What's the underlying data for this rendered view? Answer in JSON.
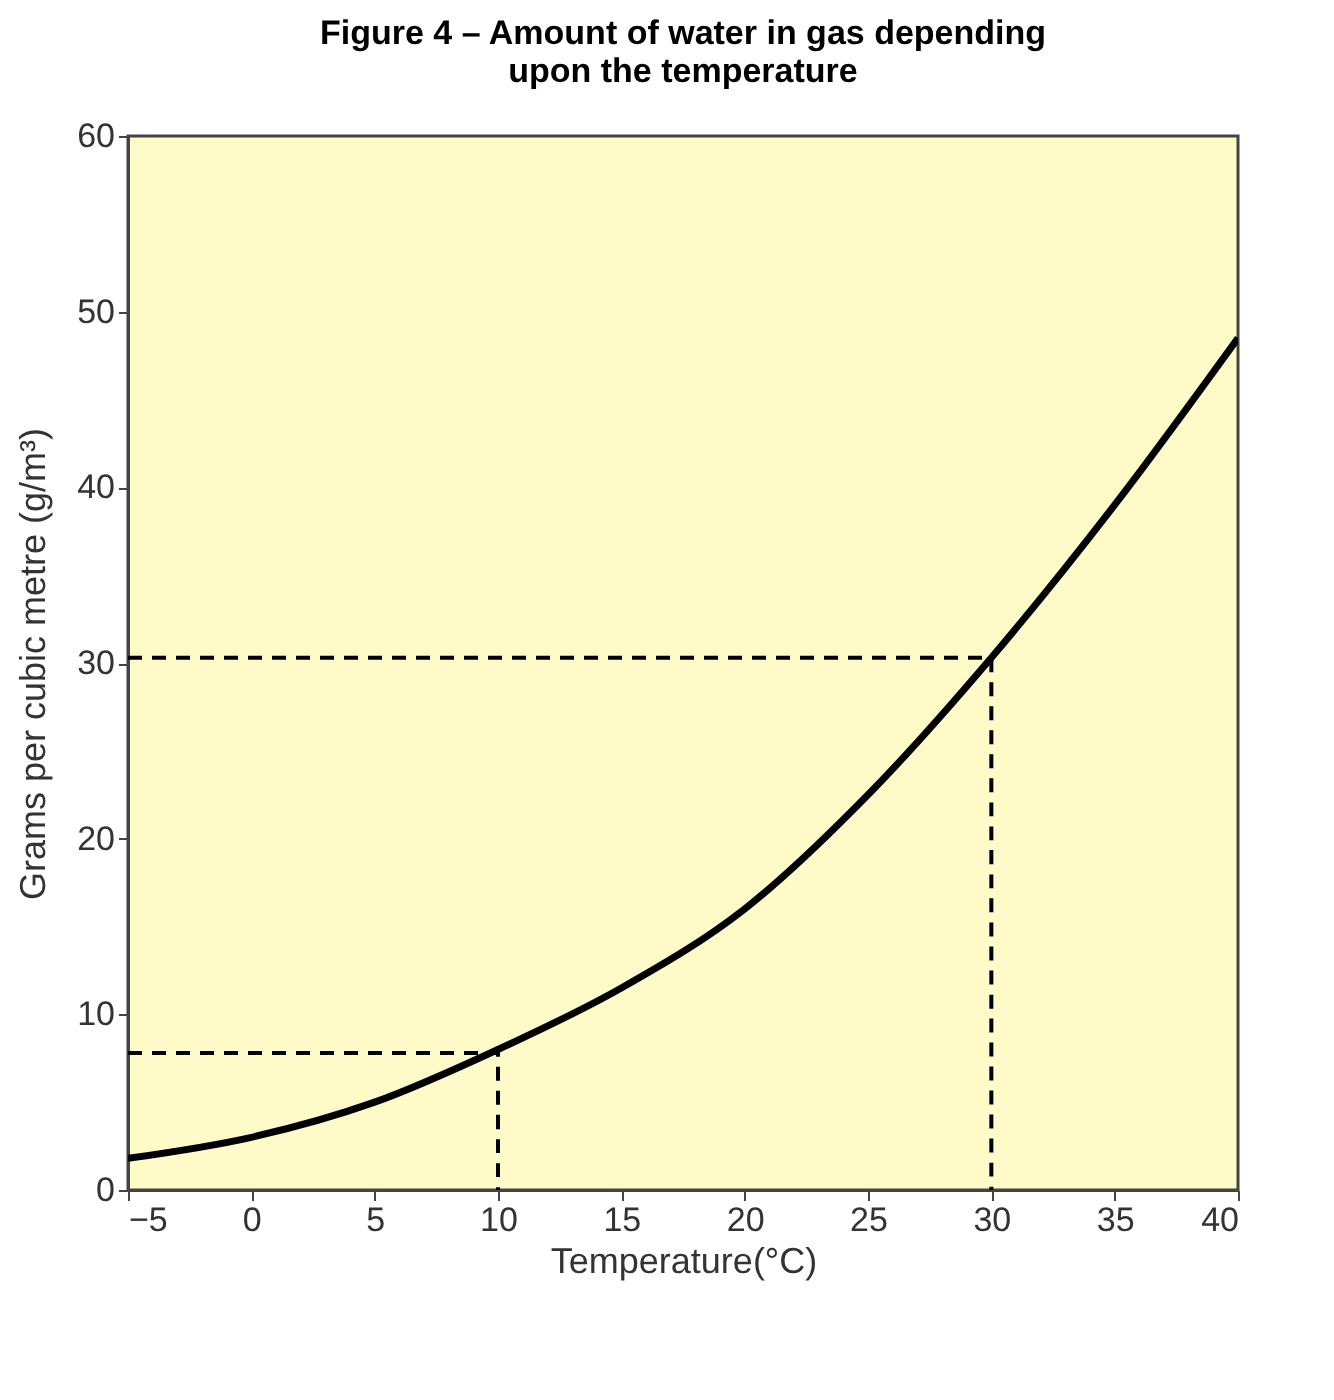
{
  "chart_data": {
    "type": "line",
    "title": "Figure 4 – Amount of water in gas depending upon the temperature",
    "xlabel": "Temperature(°C)",
    "ylabel": "Grams per cubic metre (g/m³)",
    "xlim": [
      -5,
      40
    ],
    "xticks": [
      -5,
      0,
      5,
      10,
      15,
      20,
      25,
      30,
      35,
      40
    ],
    "ylim": [
      0,
      60
    ],
    "yticks": [
      0,
      10,
      20,
      30,
      40,
      50,
      60
    ],
    "grid": false,
    "series": [
      {
        "color": "#000000",
        "line_style": "solid",
        "x": [
          -5,
          0,
          5,
          10,
          15,
          20,
          25,
          30,
          35,
          40
        ],
        "values": [
          1.8,
          3.0,
          5.0,
          8.0,
          11.5,
          16.0,
          22.5,
          30.3,
          39.0,
          48.5
        ]
      },
      {
        "color": "#000000",
        "line_style": "dashed",
        "x": [
          -5,
          10,
          10
        ],
        "values": [
          7.8,
          7.8,
          0
        ]
      },
      {
        "color": "#000000",
        "line_style": "dashed",
        "x": [
          -5,
          30,
          30
        ],
        "values": [
          30.3,
          30.3,
          0
        ]
      }
    ]
  }
}
